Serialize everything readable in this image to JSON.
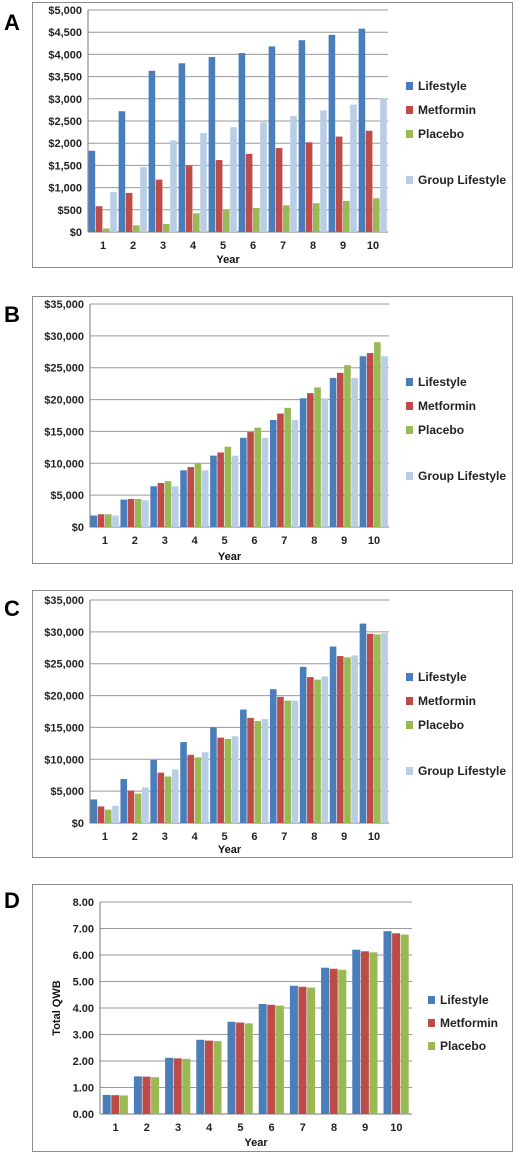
{
  "colors": {
    "lifestyle": "#4a7ebb",
    "metformin": "#be4b48",
    "placebo": "#98b954",
    "group_lifestyle": "#b9cde5",
    "grid": "#9a9a9a",
    "axis": "#777777"
  },
  "chart_data": [
    {
      "panel": "A",
      "type": "bar",
      "categories": [
        "1",
        "2",
        "3",
        "4",
        "5",
        "6",
        "7",
        "8",
        "9",
        "10"
      ],
      "xlabel": "Year",
      "ylabel": "",
      "ylim": [
        0,
        5000
      ],
      "yticks": [
        0,
        500,
        1000,
        1500,
        2000,
        2500,
        3000,
        3500,
        4000,
        4500,
        5000
      ],
      "ytick_labels": [
        "$0",
        "$500",
        "$1,000",
        "$1,500",
        "$2,000",
        "$2,500",
        "$3,000",
        "$3,500",
        "$4,000",
        "$4,500",
        "$5,000"
      ],
      "grid": true,
      "legend_placement": "right",
      "series": [
        {
          "name": "Lifestyle",
          "color_key": "lifestyle",
          "values": [
            1830,
            2720,
            3630,
            3800,
            3940,
            4030,
            4180,
            4320,
            4440,
            4580
          ]
        },
        {
          "name": "Metformin",
          "color_key": "metformin",
          "values": [
            580,
            880,
            1180,
            1500,
            1620,
            1760,
            1890,
            2020,
            2150,
            2280
          ]
        },
        {
          "name": "Placebo",
          "color_key": "placebo",
          "values": [
            80,
            150,
            180,
            420,
            500,
            540,
            600,
            650,
            700,
            760
          ]
        },
        {
          "name": "Group Lifestyle",
          "color_key": "group_lifestyle",
          "values": [
            900,
            1460,
            2060,
            2230,
            2360,
            2470,
            2610,
            2740,
            2870,
            3010
          ]
        }
      ]
    },
    {
      "panel": "B",
      "type": "bar",
      "categories": [
        "1",
        "2",
        "3",
        "4",
        "5",
        "6",
        "7",
        "8",
        "9",
        "10"
      ],
      "xlabel": "Year",
      "ylabel": "",
      "ylim": [
        0,
        35000
      ],
      "yticks": [
        0,
        5000,
        10000,
        15000,
        20000,
        25000,
        30000,
        35000
      ],
      "ytick_labels": [
        "$0",
        "$5,000",
        "$10,000",
        "$15,000",
        "$20,000",
        "$25,000",
        "$30,000",
        "$35,000"
      ],
      "grid": true,
      "legend_placement": "right",
      "series": [
        {
          "name": "Lifestyle",
          "color_key": "lifestyle",
          "values": [
            1800,
            4300,
            6400,
            8900,
            11200,
            14000,
            16800,
            20200,
            23400,
            26800
          ]
        },
        {
          "name": "Metformin",
          "color_key": "metformin",
          "values": [
            2000,
            4400,
            6900,
            9400,
            11700,
            14900,
            17800,
            21000,
            24200,
            27300
          ]
        },
        {
          "name": "Placebo",
          "color_key": "placebo",
          "values": [
            2000,
            4400,
            7200,
            10000,
            12600,
            15600,
            18700,
            21900,
            25400,
            29000
          ]
        },
        {
          "name": "Group Lifestyle",
          "color_key": "group_lifestyle",
          "values": [
            1800,
            4200,
            6400,
            8900,
            11200,
            14000,
            16800,
            20200,
            23400,
            26800
          ]
        }
      ]
    },
    {
      "panel": "C",
      "type": "bar",
      "categories": [
        "1",
        "2",
        "3",
        "4",
        "5",
        "6",
        "7",
        "8",
        "9",
        "10"
      ],
      "xlabel": "Year",
      "ylabel": "",
      "ylim": [
        0,
        35000
      ],
      "yticks": [
        0,
        5000,
        10000,
        15000,
        20000,
        25000,
        30000,
        35000
      ],
      "ytick_labels": [
        "$0",
        "$5,000",
        "$10,000",
        "$15,000",
        "$20,000",
        "$25,000",
        "$30,000",
        "$35,000"
      ],
      "grid": true,
      "legend_placement": "right",
      "series": [
        {
          "name": "Lifestyle",
          "color_key": "lifestyle",
          "values": [
            3700,
            6900,
            9900,
            12700,
            15000,
            17800,
            21000,
            24500,
            27700,
            31300
          ]
        },
        {
          "name": "Metformin",
          "color_key": "metformin",
          "values": [
            2600,
            5100,
            7900,
            10700,
            13400,
            16500,
            19800,
            22900,
            26200,
            29700
          ]
        },
        {
          "name": "Placebo",
          "color_key": "placebo",
          "values": [
            2100,
            4600,
            7300,
            10300,
            13200,
            16000,
            19200,
            22500,
            26000,
            29600
          ]
        },
        {
          "name": "Group Lifestyle",
          "color_key": "group_lifestyle",
          "values": [
            2700,
            5600,
            8400,
            11100,
            13600,
            16300,
            19200,
            23000,
            26300,
            29800
          ]
        }
      ]
    },
    {
      "panel": "D",
      "type": "bar",
      "categories": [
        "1",
        "2",
        "3",
        "4",
        "5",
        "6",
        "7",
        "8",
        "9",
        "10"
      ],
      "xlabel": "Year",
      "ylabel": "Total QWB",
      "ylim": [
        0,
        8
      ],
      "yticks": [
        0,
        1,
        2,
        3,
        4,
        5,
        6,
        7,
        8
      ],
      "ytick_labels": [
        "0.00",
        "1.00",
        "2.00",
        "3.00",
        "4.00",
        "5.00",
        "6.00",
        "7.00",
        "8.00"
      ],
      "grid": true,
      "legend_placement": "right",
      "series": [
        {
          "name": "Lifestyle",
          "color_key": "lifestyle",
          "values": [
            0.72,
            1.42,
            2.12,
            2.8,
            3.48,
            4.15,
            4.84,
            5.52,
            6.2,
            6.9
          ]
        },
        {
          "name": "Metformin",
          "color_key": "metformin",
          "values": [
            0.71,
            1.41,
            2.1,
            2.77,
            3.45,
            4.12,
            4.8,
            5.48,
            6.14,
            6.82
          ]
        },
        {
          "name": "Placebo",
          "color_key": "placebo",
          "values": [
            0.7,
            1.39,
            2.08,
            2.75,
            3.42,
            4.09,
            4.77,
            5.44,
            6.1,
            6.77
          ]
        }
      ]
    }
  ]
}
